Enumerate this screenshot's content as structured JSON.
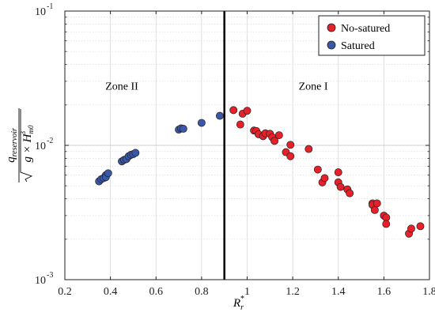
{
  "chart_data": {
    "type": "scatter",
    "title": "",
    "xlabel_main": "R",
    "xlabel_sub": "r",
    "xlabel_sup": "*",
    "ylabel": "q_reservoir / sqrt(g × H_m0^3)",
    "ylabel_numerator": "q",
    "ylabel_numerator_sub": "reservoir",
    "ylabel_den_g": "g × H",
    "ylabel_den_sup": "3",
    "ylabel_den_sub": "m0",
    "xlim": [
      0.2,
      1.8
    ],
    "ylim": [
      0.001,
      0.1
    ],
    "yscale": "log",
    "grid": true,
    "legend_position": "top-right",
    "x_ticks": [
      0.2,
      0.4,
      0.6,
      0.8,
      1,
      1.2,
      1.4,
      1.6,
      1.8
    ],
    "x_tick_labels": [
      "0.2",
      "0.4",
      "0.6",
      "0.8",
      "1",
      "1.2",
      "1.4",
      "1.6",
      "1.8"
    ],
    "y_ticks": [
      {
        "value": 0.001,
        "base": "10",
        "exp": "-3"
      },
      {
        "value": 0.01,
        "base": "10",
        "exp": "-2"
      },
      {
        "value": 0.1,
        "base": "10",
        "exp": "-1"
      }
    ],
    "vertical_line_x": 0.9,
    "annotations": [
      {
        "text": "Zone II",
        "x": 0.45,
        "y": 0.026
      },
      {
        "text": "Zone I",
        "x": 1.29,
        "y": 0.026
      }
    ],
    "series": [
      {
        "name": "No-satured",
        "color": "#e8202a",
        "x": [
          0.94,
          0.97,
          0.98,
          1.0,
          1.03,
          1.04,
          1.05,
          1.07,
          1.08,
          1.1,
          1.11,
          1.12,
          1.14,
          1.17,
          1.19,
          1.19,
          1.27,
          1.31,
          1.33,
          1.34,
          1.4,
          1.4,
          1.41,
          1.44,
          1.45,
          1.55,
          1.55,
          1.56,
          1.57,
          1.6,
          1.61,
          1.61,
          1.71,
          1.72,
          1.76
        ],
        "y": [
          0.0183,
          0.0143,
          0.0172,
          0.0181,
          0.0129,
          0.0128,
          0.0121,
          0.0117,
          0.0123,
          0.0122,
          0.0115,
          0.0108,
          0.0119,
          0.0089,
          0.0101,
          0.0083,
          0.0094,
          0.0066,
          0.0053,
          0.0057,
          0.0053,
          0.0063,
          0.0049,
          0.0047,
          0.0044,
          0.0037,
          0.0036,
          0.0033,
          0.0037,
          0.003,
          0.0029,
          0.0026,
          0.0022,
          0.0024,
          0.0025
        ]
      },
      {
        "name": "Satured",
        "color": "#3a57a8",
        "x": [
          0.35,
          0.36,
          0.37,
          0.38,
          0.38,
          0.39,
          0.45,
          0.46,
          0.47,
          0.48,
          0.49,
          0.5,
          0.51,
          0.7,
          0.71,
          0.72,
          0.8,
          0.88
        ],
        "y": [
          0.0054,
          0.0056,
          0.0057,
          0.006,
          0.0058,
          0.0062,
          0.0076,
          0.0078,
          0.0079,
          0.0083,
          0.0085,
          0.0086,
          0.0088,
          0.0131,
          0.0134,
          0.0133,
          0.0147,
          0.0166
        ]
      }
    ]
  }
}
